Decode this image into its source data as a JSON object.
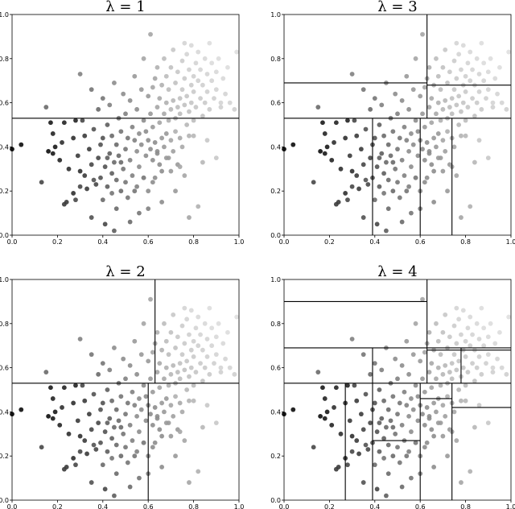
{
  "chart_data": [
    {
      "type": "scatter",
      "title": "λ = 1",
      "xlim": [
        0.0,
        1.0
      ],
      "ylim": [
        0.0,
        1.0
      ],
      "xticks": [
        "0.0",
        "0.2",
        "0.4",
        "0.6",
        "0.8",
        "1.0"
      ],
      "yticks": [
        "0.0",
        "0.2",
        "0.4",
        "0.6",
        "0.8",
        "1.0"
      ],
      "partition_lines": [
        {
          "x": [
            0.0,
            1.0
          ],
          "y": [
            0.53,
            0.53
          ]
        }
      ]
    },
    {
      "type": "scatter",
      "title": "λ = 3",
      "xlim": [
        0.0,
        1.0
      ],
      "ylim": [
        0.0,
        1.0
      ],
      "xticks": [
        "0.0",
        "0.2",
        "0.4",
        "0.6",
        "0.8",
        "1.0"
      ],
      "yticks": [
        "0.0",
        "0.2",
        "0.4",
        "0.6",
        "0.8",
        "1.0"
      ],
      "partition_lines": [
        {
          "x": [
            0.0,
            1.0
          ],
          "y": [
            0.53,
            0.53
          ]
        },
        {
          "x": [
            0.0,
            0.63
          ],
          "y": [
            0.69,
            0.69
          ]
        },
        {
          "x": [
            0.63,
            0.63
          ],
          "y": [
            0.53,
            1.0
          ]
        },
        {
          "x": [
            0.63,
            1.0
          ],
          "y": [
            0.68,
            0.68
          ]
        },
        {
          "x": [
            0.39,
            0.39
          ],
          "y": [
            0.0,
            0.53
          ]
        },
        {
          "x": [
            0.6,
            0.6
          ],
          "y": [
            0.0,
            0.53
          ]
        },
        {
          "x": [
            0.74,
            0.74
          ],
          "y": [
            0.0,
            0.53
          ]
        }
      ]
    },
    {
      "type": "scatter",
      "title": "λ = 2",
      "xlim": [
        0.0,
        1.0
      ],
      "ylim": [
        0.0,
        1.0
      ],
      "xticks": [
        "0.0",
        "0.2",
        "0.4",
        "0.6",
        "0.8",
        "1.0"
      ],
      "yticks": [
        "0.0",
        "0.2",
        "0.4",
        "0.6",
        "0.8",
        "1.0"
      ],
      "partition_lines": [
        {
          "x": [
            0.0,
            1.0
          ],
          "y": [
            0.53,
            0.53
          ]
        },
        {
          "x": [
            0.63,
            0.63
          ],
          "y": [
            0.53,
            1.0
          ]
        },
        {
          "x": [
            0.6,
            0.6
          ],
          "y": [
            0.0,
            0.53
          ]
        }
      ]
    },
    {
      "type": "scatter",
      "title": "λ = 4",
      "xlim": [
        0.0,
        1.0
      ],
      "ylim": [
        0.0,
        1.0
      ],
      "xticks": [
        "0.0",
        "0.2",
        "0.4",
        "0.6",
        "0.8",
        "1.0"
      ],
      "yticks": [
        "0.0",
        "0.2",
        "0.4",
        "0.6",
        "0.8",
        "1.0"
      ],
      "partition_lines": [
        {
          "x": [
            0.0,
            1.0
          ],
          "y": [
            0.53,
            0.53
          ]
        },
        {
          "x": [
            0.0,
            0.63
          ],
          "y": [
            0.9,
            0.9
          ]
        },
        {
          "x": [
            0.0,
            0.63
          ],
          "y": [
            0.69,
            0.69
          ]
        },
        {
          "x": [
            0.63,
            0.63
          ],
          "y": [
            0.53,
            1.0
          ]
        },
        {
          "x": [
            0.63,
            1.0
          ],
          "y": [
            0.69,
            0.69
          ]
        },
        {
          "x": [
            0.63,
            1.0
          ],
          "y": [
            0.68,
            0.68
          ]
        },
        {
          "x": [
            0.78,
            0.78
          ],
          "y": [
            0.53,
            0.69
          ]
        },
        {
          "x": [
            0.39,
            0.39
          ],
          "y": [
            0.53,
            0.69
          ]
        },
        {
          "x": [
            0.27,
            0.27
          ],
          "y": [
            0.0,
            0.53
          ]
        },
        {
          "x": [
            0.39,
            0.39
          ],
          "y": [
            0.0,
            0.53
          ]
        },
        {
          "x": [
            0.6,
            0.6
          ],
          "y": [
            0.0,
            0.53
          ]
        },
        {
          "x": [
            0.74,
            0.74
          ],
          "y": [
            0.0,
            0.53
          ]
        },
        {
          "x": [
            0.39,
            0.6
          ],
          "y": [
            0.27,
            0.27
          ]
        },
        {
          "x": [
            0.6,
            0.74
          ],
          "y": [
            0.46,
            0.46
          ]
        },
        {
          "x": [
            0.74,
            1.0
          ],
          "y": [
            0.42,
            0.42
          ]
        }
      ]
    }
  ],
  "points": {
    "x": [
      0.0,
      0.04,
      0.13,
      0.15,
      0.16,
      0.17,
      0.18,
      0.18,
      0.19,
      0.21,
      0.22,
      0.23,
      0.23,
      0.25,
      0.27,
      0.27,
      0.28,
      0.29,
      0.3,
      0.3,
      0.31,
      0.32,
      0.32,
      0.33,
      0.34,
      0.35,
      0.35,
      0.36,
      0.37,
      0.38,
      0.38,
      0.39,
      0.39,
      0.4,
      0.4,
      0.41,
      0.41,
      0.42,
      0.42,
      0.43,
      0.43,
      0.44,
      0.44,
      0.45,
      0.45,
      0.45,
      0.46,
      0.46,
      0.47,
      0.47,
      0.48,
      0.48,
      0.49,
      0.49,
      0.5,
      0.5,
      0.5,
      0.51,
      0.51,
      0.52,
      0.52,
      0.53,
      0.53,
      0.54,
      0.54,
      0.55,
      0.55,
      0.55,
      0.56,
      0.56,
      0.57,
      0.57,
      0.58,
      0.58,
      0.58,
      0.59,
      0.59,
      0.6,
      0.6,
      0.6,
      0.61,
      0.61,
      0.61,
      0.62,
      0.62,
      0.62,
      0.63,
      0.63,
      0.63,
      0.64,
      0.64,
      0.64,
      0.65,
      0.65,
      0.65,
      0.66,
      0.66,
      0.66,
      0.67,
      0.67,
      0.67,
      0.68,
      0.68,
      0.68,
      0.69,
      0.69,
      0.69,
      0.7,
      0.7,
      0.7,
      0.71,
      0.71,
      0.71,
      0.72,
      0.72,
      0.72,
      0.73,
      0.73,
      0.73,
      0.74,
      0.74,
      0.74,
      0.75,
      0.75,
      0.75,
      0.76,
      0.76,
      0.76,
      0.77,
      0.77,
      0.77,
      0.78,
      0.78,
      0.78,
      0.79,
      0.79,
      0.79,
      0.8,
      0.8,
      0.8,
      0.81,
      0.81,
      0.82,
      0.82,
      0.83,
      0.83,
      0.84,
      0.84,
      0.85,
      0.85,
      0.86,
      0.86,
      0.87,
      0.87,
      0.88,
      0.88,
      0.89,
      0.9,
      0.9,
      0.91,
      0.92,
      0.93,
      0.94,
      0.95,
      0.96,
      0.98,
      0.99,
      0.6,
      0.66,
      0.56,
      0.52,
      0.44,
      0.4,
      0.72,
      0.78,
      0.82,
      0.46,
      0.35,
      0.28,
      0.58,
      0.62,
      0.7,
      0.76,
      0.84,
      0.9,
      0.54,
      0.48,
      0.42,
      0.36,
      0.3,
      0.24,
      0.64,
      0.68,
      0.74,
      0.8,
      0.86,
      0.92
    ],
    "y": [
      0.39,
      0.41,
      0.24,
      0.58,
      0.38,
      0.51,
      0.37,
      0.46,
      0.4,
      0.34,
      0.42,
      0.51,
      0.14,
      0.3,
      0.19,
      0.44,
      0.52,
      0.36,
      0.73,
      0.29,
      0.52,
      0.27,
      0.45,
      0.21,
      0.39,
      0.66,
      0.32,
      0.48,
      0.23,
      0.35,
      0.57,
      0.41,
      0.26,
      0.44,
      0.62,
      0.31,
      0.05,
      0.5,
      0.22,
      0.37,
      0.59,
      0.28,
      0.45,
      0.33,
      0.69,
      0.02,
      0.41,
      0.25,
      0.53,
      0.36,
      0.2,
      0.47,
      0.3,
      0.64,
      0.39,
      0.24,
      0.55,
      0.44,
      0.17,
      0.34,
      0.61,
      0.49,
      0.27,
      0.43,
      0.72,
      0.38,
      0.22,
      0.57,
      0.46,
      0.31,
      0.66,
      0.41,
      0.52,
      0.26,
      0.8,
      0.36,
      0.47,
      0.63,
      0.43,
      0.2,
      0.91,
      0.39,
      0.55,
      0.67,
      0.34,
      0.49,
      0.71,
      0.42,
      0.26,
      0.58,
      0.37,
      0.76,
      0.51,
      0.32,
      0.62,
      0.44,
      0.68,
      0.29,
      0.55,
      0.4,
      0.8,
      0.6,
      0.46,
      0.72,
      0.52,
      0.35,
      0.66,
      0.57,
      0.43,
      0.76,
      0.61,
      0.38,
      0.84,
      0.53,
      0.69,
      0.47,
      0.58,
      0.32,
      0.74,
      0.62,
      0.44,
      0.55,
      0.79,
      0.66,
      0.4,
      0.59,
      0.87,
      0.71,
      0.5,
      0.63,
      0.82,
      0.56,
      0.75,
      0.45,
      0.68,
      0.6,
      0.86,
      0.72,
      0.52,
      0.65,
      0.78,
      0.58,
      0.7,
      0.83,
      0.62,
      0.75,
      0.54,
      0.68,
      0.8,
      0.6,
      0.73,
      0.65,
      0.87,
      0.57,
      0.7,
      0.78,
      0.62,
      0.74,
      0.66,
      0.8,
      0.58,
      0.71,
      0.64,
      0.76,
      0.6,
      0.57,
      0.83,
      0.12,
      0.15,
      0.1,
      0.06,
      0.19,
      0.16,
      0.2,
      0.08,
      0.13,
      0.12,
      0.08,
      0.16,
      0.26,
      0.24,
      0.29,
      0.27,
      0.33,
      0.35,
      0.2,
      0.33,
      0.35,
      0.25,
      0.22,
      0.15,
      0.38,
      0.35,
      0.31,
      0.45,
      0.43,
      0.6
    ],
    "shade": [
      0.0,
      0.05,
      0.3,
      0.45,
      0.05,
      0.1,
      0.1,
      0.15,
      0.1,
      0.15,
      0.2,
      0.15,
      0.25,
      0.2,
      0.2,
      0.2,
      0.15,
      0.25,
      0.55,
      0.2,
      0.3,
      0.25,
      0.25,
      0.25,
      0.25,
      0.5,
      0.3,
      0.35,
      0.3,
      0.3,
      0.45,
      0.35,
      0.35,
      0.35,
      0.5,
      0.35,
      0.3,
      0.4,
      0.4,
      0.4,
      0.55,
      0.4,
      0.45,
      0.45,
      0.6,
      0.4,
      0.45,
      0.45,
      0.5,
      0.45,
      0.45,
      0.5,
      0.5,
      0.6,
      0.5,
      0.5,
      0.55,
      0.5,
      0.5,
      0.55,
      0.6,
      0.55,
      0.55,
      0.55,
      0.65,
      0.6,
      0.55,
      0.6,
      0.6,
      0.6,
      0.65,
      0.6,
      0.6,
      0.6,
      0.7,
      0.6,
      0.6,
      0.65,
      0.6,
      0.6,
      0.7,
      0.6,
      0.65,
      0.7,
      0.6,
      0.65,
      0.7,
      0.6,
      0.6,
      0.7,
      0.6,
      0.75,
      0.7,
      0.6,
      0.72,
      0.65,
      0.75,
      0.6,
      0.72,
      0.65,
      0.8,
      0.75,
      0.65,
      0.8,
      0.75,
      0.65,
      0.8,
      0.78,
      0.7,
      0.82,
      0.78,
      0.68,
      0.85,
      0.78,
      0.82,
      0.75,
      0.8,
      0.65,
      0.85,
      0.82,
      0.72,
      0.8,
      0.87,
      0.85,
      0.72,
      0.82,
      0.9,
      0.86,
      0.78,
      0.84,
      0.9,
      0.82,
      0.88,
      0.76,
      0.86,
      0.84,
      0.92,
      0.88,
      0.8,
      0.86,
      0.9,
      0.84,
      0.88,
      0.92,
      0.86,
      0.9,
      0.82,
      0.88,
      0.92,
      0.86,
      0.9,
      0.88,
      0.94,
      0.86,
      0.9,
      0.93,
      0.88,
      0.92,
      0.9,
      0.94,
      0.88,
      0.92,
      0.9,
      0.94,
      0.9,
      0.88,
      0.95,
      0.55,
      0.6,
      0.5,
      0.45,
      0.5,
      0.45,
      0.65,
      0.7,
      0.75,
      0.45,
      0.35,
      0.3,
      0.55,
      0.6,
      0.65,
      0.7,
      0.78,
      0.85,
      0.5,
      0.45,
      0.4,
      0.35,
      0.3,
      0.25,
      0.6,
      0.65,
      0.7,
      0.78,
      0.85,
      0.9
    ]
  }
}
